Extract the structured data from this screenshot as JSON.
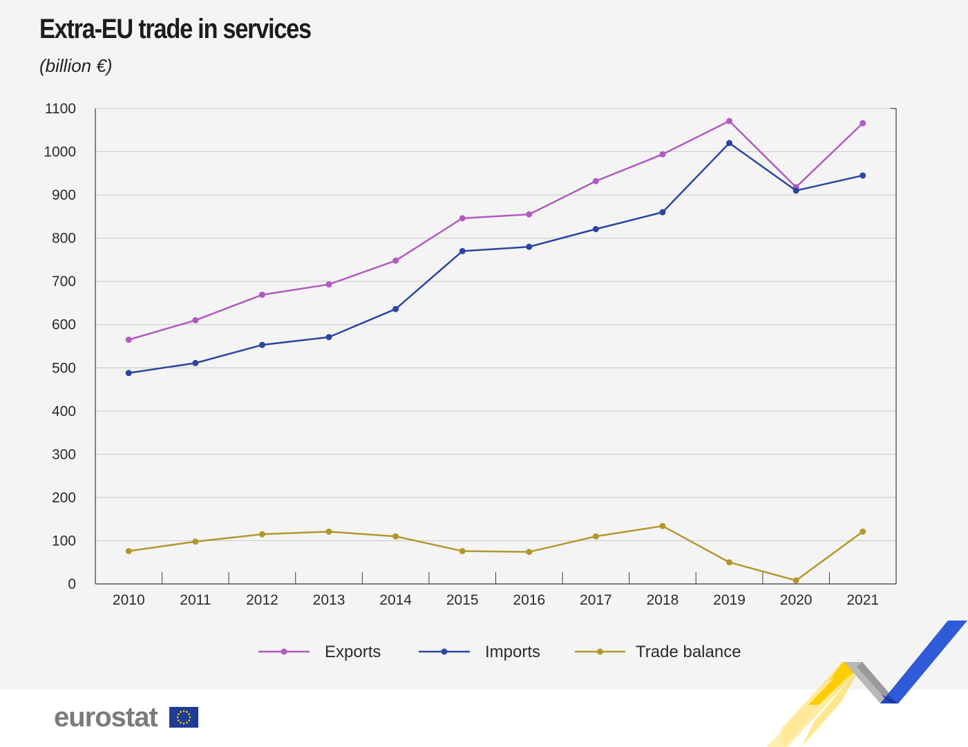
{
  "title": "Extra-EU trade in services",
  "subtitle": "(billion €)",
  "logo_text": "eurostat",
  "colors": {
    "exports": "#b159c0",
    "imports": "#2a45a2",
    "trade_balance": "#b3972b",
    "grid": "#c8c8c8",
    "axis": "#3a3a3a",
    "panel": "#f4f4f4"
  },
  "chart_data": {
    "type": "line",
    "title": "Extra-EU trade in services",
    "ylabel": "(billion €)",
    "xlabel": "",
    "x": [
      "2010",
      "2011",
      "2012",
      "2013",
      "2014",
      "2015",
      "2016",
      "2017",
      "2018",
      "2019",
      "2020",
      "2021"
    ],
    "ylim": [
      0,
      1100
    ],
    "yticks": [
      0,
      100,
      200,
      300,
      400,
      500,
      600,
      700,
      800,
      900,
      1000,
      1100
    ],
    "grid": "horizontal",
    "legend_position": "bottom",
    "series": [
      {
        "name": "Exports",
        "key": "exports",
        "values": [
          565,
          610,
          669,
          693,
          748,
          846,
          855,
          932,
          994,
          1071,
          918,
          1066
        ]
      },
      {
        "name": "Imports",
        "key": "imports",
        "values": [
          488,
          511,
          553,
          571,
          636,
          770,
          780,
          821,
          860,
          1020,
          910,
          945
        ]
      },
      {
        "name": "Trade balance",
        "key": "trade_balance",
        "values": [
          76,
          98,
          115,
          121,
          110,
          76,
          74,
          110,
          134,
          50,
          8,
          121
        ]
      }
    ]
  }
}
